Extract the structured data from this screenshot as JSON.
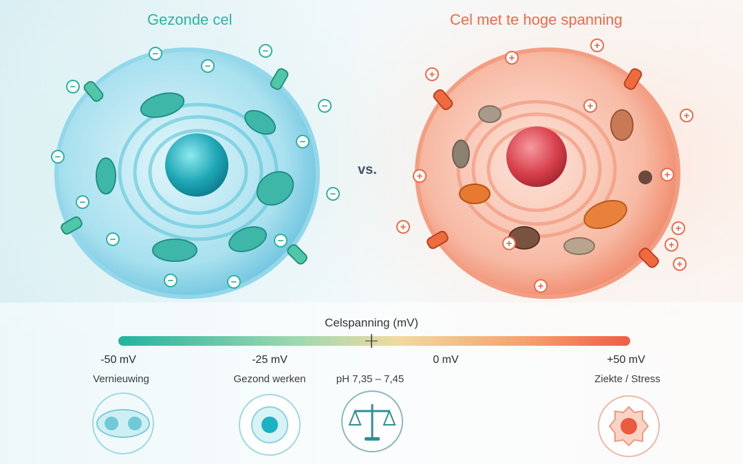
{
  "titles": {
    "healthy": "Gezonde cel",
    "stressed": "Cel met te hoge spanning",
    "vs": "vs."
  },
  "scale": {
    "title": "Celspanning (mV)",
    "ticks": [
      "-50 mV",
      "-25 mV",
      "0 mV",
      "+50 mV"
    ],
    "captions": [
      "Vernieuwing",
      "Gezond werken",
      "pH 7,35 – 7,45",
      "Ziekte / Stress"
    ]
  },
  "charge_symbols": {
    "negative": "−",
    "positive": "+"
  },
  "colors": {
    "healthy": "#2bb3a3",
    "stressed": "#ee6a48",
    "healthy_cell": "#7fd3e6",
    "stressed_cell": "#f6a48c"
  },
  "icons": [
    "dividing-cell-icon",
    "healthy-cell-icon",
    "balance-scale-icon",
    "stressed-cell-icon"
  ]
}
